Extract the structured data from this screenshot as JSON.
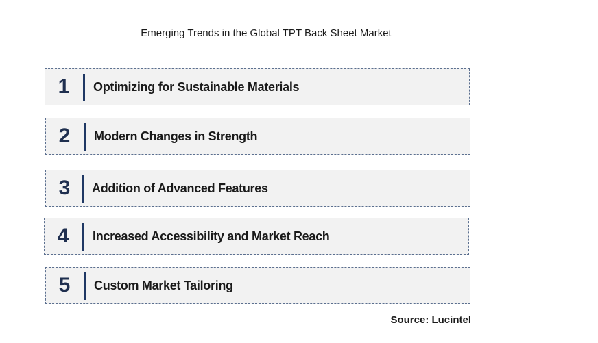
{
  "title": "Emerging Trends in the Global TPT Back Sheet Market",
  "trends": [
    {
      "number": "1",
      "label": "Optimizing for Sustainable Materials"
    },
    {
      "number": "2",
      "label": "Modern Changes in Strength"
    },
    {
      "number": "3",
      "label": "Addition of Advanced Features"
    },
    {
      "number": "4",
      "label": "Increased Accessibility and Market Reach"
    },
    {
      "number": "5",
      "label": "Custom Market Tailoring"
    }
  ],
  "source": "Source: Lucintel",
  "colors": {
    "box_background": "#f2f2f2",
    "box_border": "#5b6f8f",
    "accent_bar": "#1f3864"
  }
}
